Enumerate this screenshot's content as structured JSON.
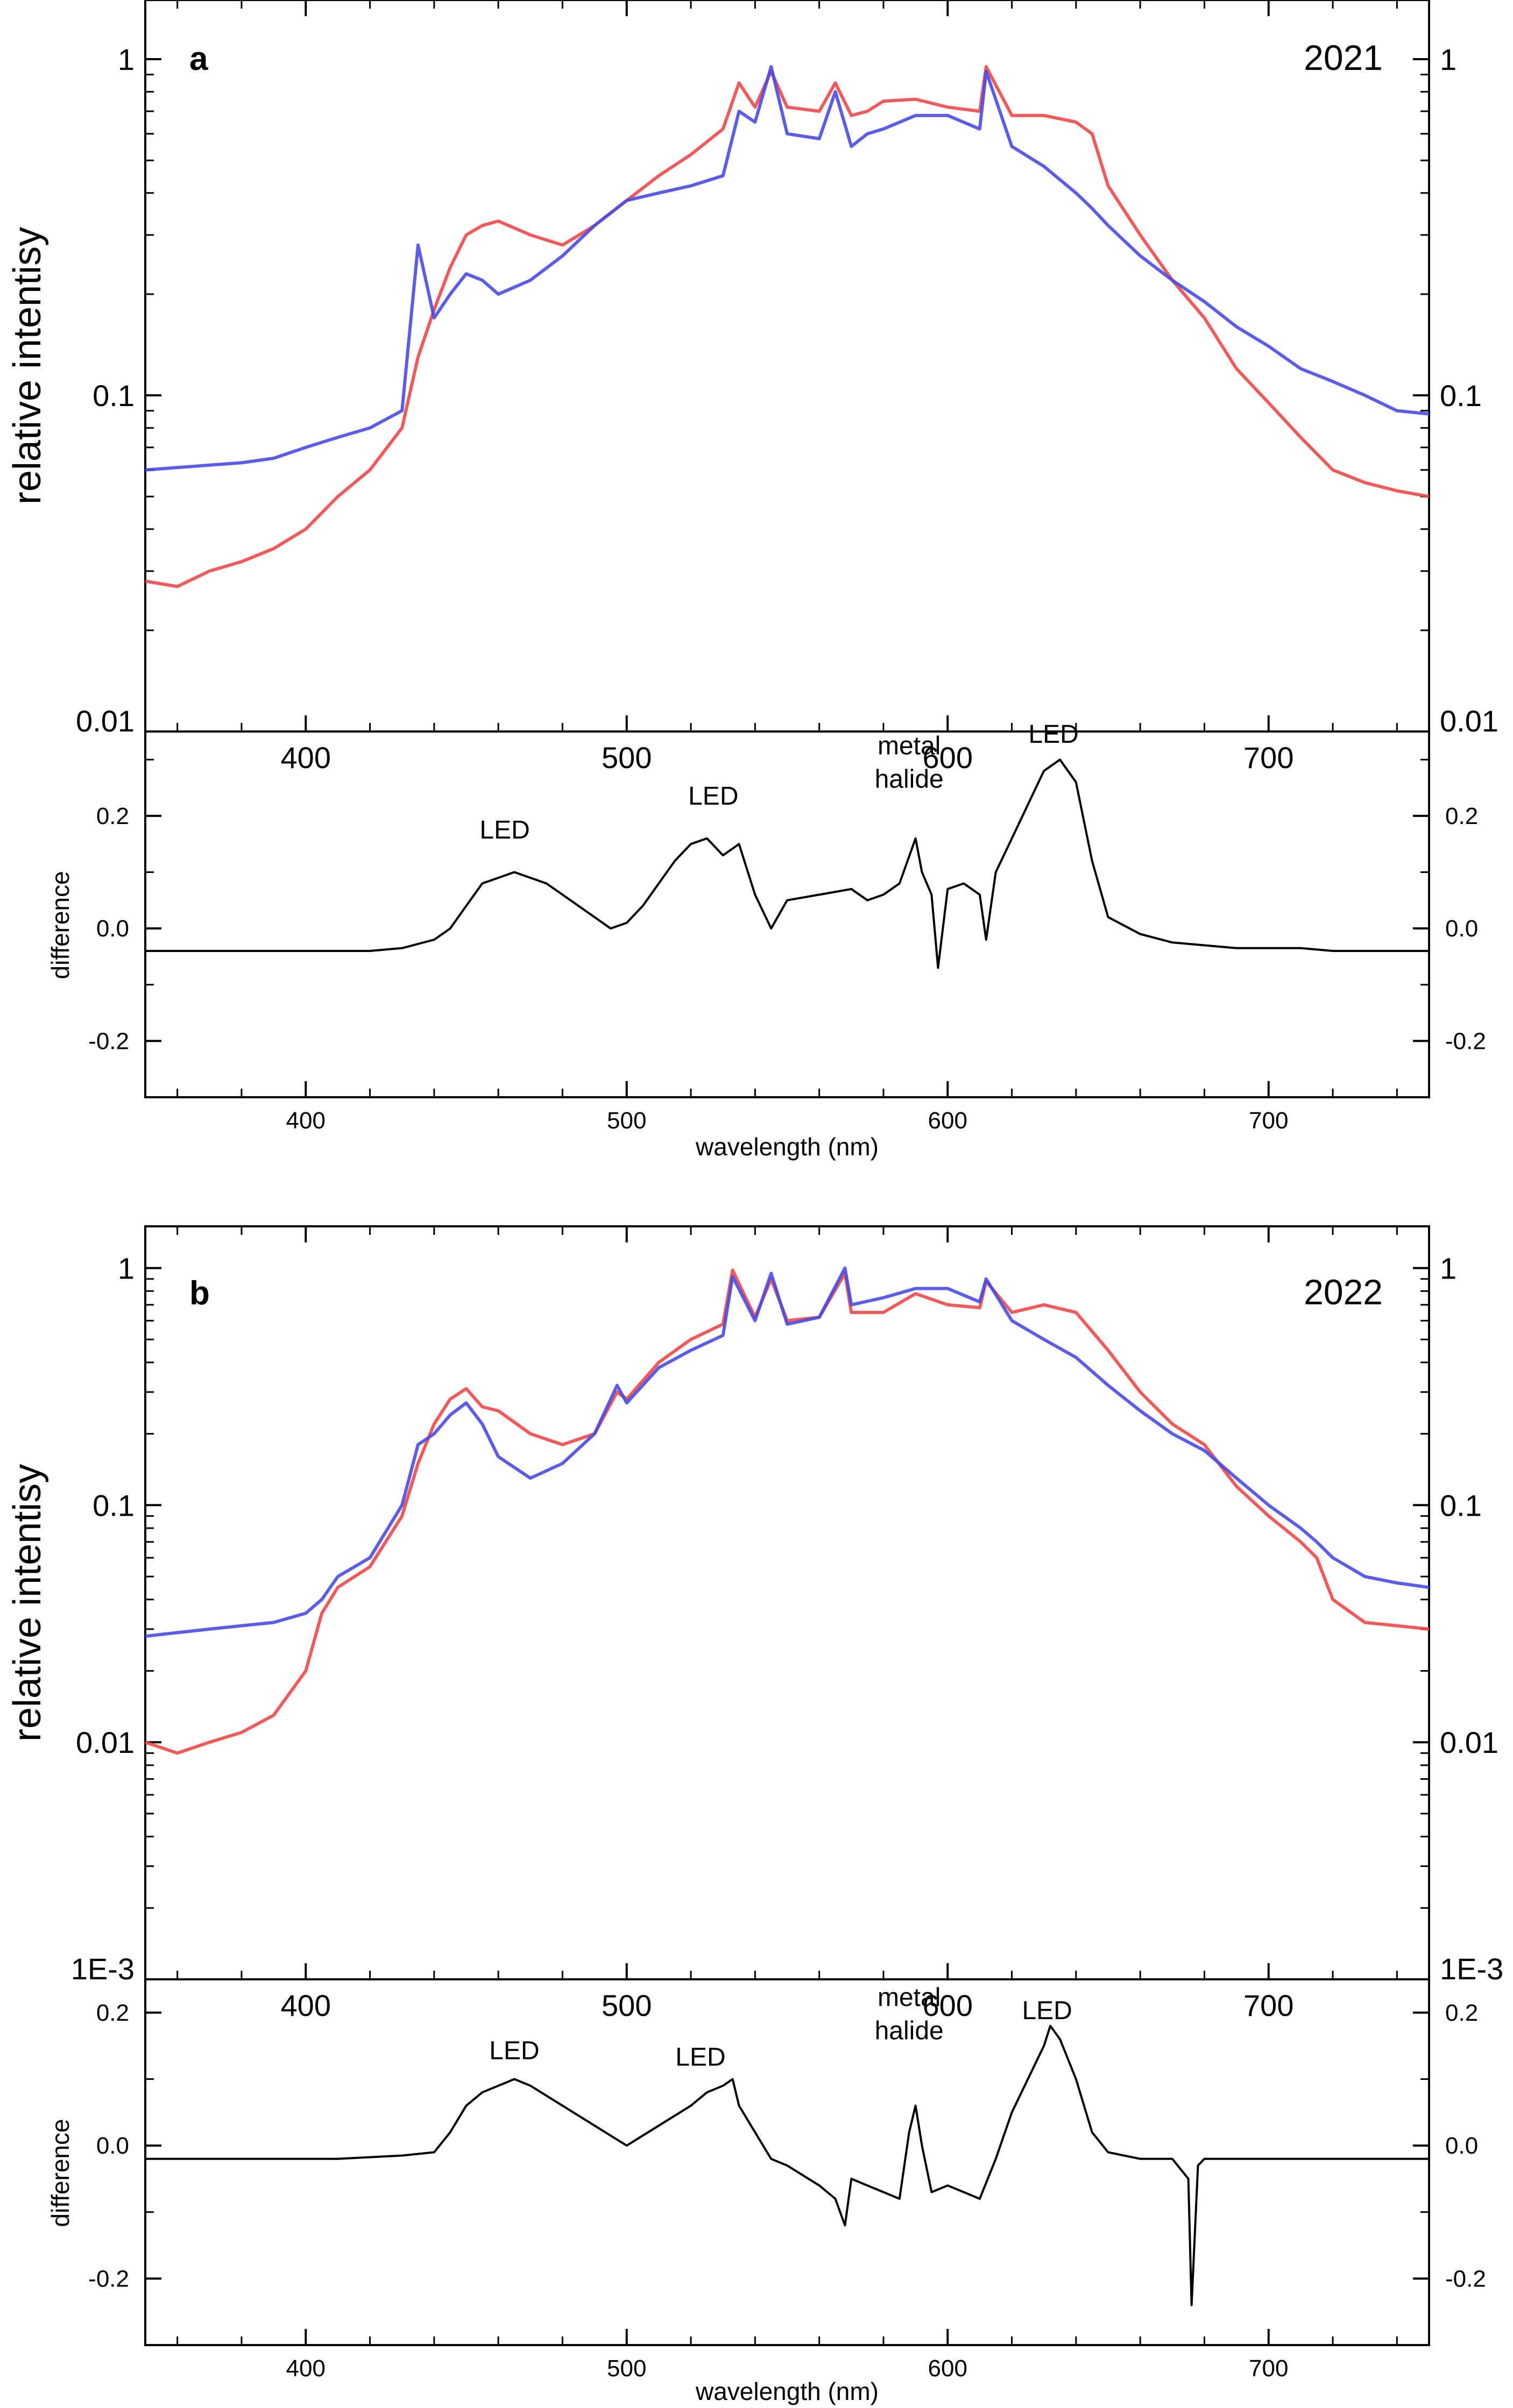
{
  "colors": {
    "red": "#f04848",
    "blue": "#4a4ae6",
    "diff": "#000000"
  },
  "panels": [
    {
      "letter": "a",
      "year": "2021",
      "main": {
        "ylabel": "relative intentisy",
        "scale": "log",
        "ylim": [
          0.01,
          1.5
        ],
        "yticks": [
          {
            "value": 0.01,
            "label": "0.01"
          },
          {
            "value": 0.1,
            "label": "0.1"
          },
          {
            "value": 1,
            "label": "1"
          }
        ],
        "xticks": [
          {
            "value": 400,
            "label": "400"
          },
          {
            "value": 500,
            "label": "500"
          },
          {
            "value": 600,
            "label": "600"
          },
          {
            "value": 700,
            "label": "700"
          }
        ]
      },
      "diff": {
        "ylabel": "difference",
        "xlabel": "",
        "ylim": [
          -0.3,
          0.35
        ],
        "yticks": [
          {
            "value": -0.2,
            "label": "-0.2"
          },
          {
            "value": 0.0,
            "label": "0.0"
          },
          {
            "value": 0.2,
            "label": "0.2"
          }
        ],
        "xticks": [
          {
            "value": 400,
            "label": "400"
          },
          {
            "value": 500,
            "label": "500"
          },
          {
            "value": 600,
            "label": "600"
          },
          {
            "value": 700,
            "label": "700"
          }
        ],
        "annotations": [
          {
            "text": "LED",
            "lines": [
              "LED"
            ],
            "x": 462,
            "y": 0.16
          },
          {
            "text": "LED",
            "lines": [
              "LED"
            ],
            "x": 527,
            "y": 0.22
          },
          {
            "text": "metal halide",
            "lines": [
              "metal",
              "halide"
            ],
            "x": 588,
            "y": 0.25
          },
          {
            "text": "LED",
            "lines": [
              "LED"
            ],
            "x": 633,
            "y": 0.33
          }
        ]
      }
    },
    {
      "letter": "b",
      "year": "2022",
      "main": {
        "ylabel": "relative intentisy",
        "scale": "log",
        "ylim": [
          0.001,
          1.5
        ],
        "yticks": [
          {
            "value": 0.001,
            "label": "1E-3"
          },
          {
            "value": 0.01,
            "label": "0.01"
          },
          {
            "value": 0.1,
            "label": "0.1"
          },
          {
            "value": 1,
            "label": "1"
          }
        ],
        "xticks": [
          {
            "value": 400,
            "label": "400"
          },
          {
            "value": 500,
            "label": "500"
          },
          {
            "value": 600,
            "label": "600"
          },
          {
            "value": 700,
            "label": "700"
          }
        ]
      },
      "diff": {
        "ylabel": "difference",
        "xlabel": "wavelength (nm)",
        "ylim": [
          -0.3,
          0.25
        ],
        "yticks": [
          {
            "value": -0.2,
            "label": "-0.2"
          },
          {
            "value": 0.0,
            "label": "0.0"
          },
          {
            "value": 0.2,
            "label": "0.2"
          }
        ],
        "xticks": [
          {
            "value": 400,
            "label": "400"
          },
          {
            "value": 500,
            "label": "500"
          },
          {
            "value": 600,
            "label": "600"
          },
          {
            "value": 700,
            "label": "700"
          }
        ],
        "annotations": [
          {
            "text": "LED",
            "lines": [
              "LED"
            ],
            "x": 465,
            "y": 0.13
          },
          {
            "text": "LED",
            "lines": [
              "LED"
            ],
            "x": 523,
            "y": 0.12
          },
          {
            "text": "metal halide",
            "lines": [
              "metal",
              "halide"
            ],
            "x": 588,
            "y": 0.16
          },
          {
            "text": "LED",
            "lines": [
              "LED"
            ],
            "x": 631,
            "y": 0.19
          }
        ]
      }
    }
  ],
  "panel_a_xlabel_middle": "wavelength (nm)",
  "chart_data": [
    {
      "type": "line",
      "title": "a 2021",
      "xlabel": "",
      "ylabel": "relative intentisy",
      "xlim": [
        350,
        750
      ],
      "ylim": [
        0.01,
        1.5
      ],
      "yscale": "log",
      "series": [
        {
          "color": "#f04848",
          "x": [
            350,
            360,
            370,
            380,
            390,
            400,
            410,
            420,
            430,
            435,
            440,
            445,
            450,
            455,
            460,
            470,
            480,
            490,
            500,
            510,
            520,
            530,
            535,
            540,
            545,
            550,
            560,
            565,
            570,
            575,
            580,
            590,
            600,
            610,
            612,
            620,
            630,
            640,
            645,
            650,
            660,
            670,
            680,
            690,
            700,
            710,
            720,
            730,
            740,
            750
          ],
          "y": [
            0.028,
            0.027,
            0.03,
            0.032,
            0.035,
            0.04,
            0.05,
            0.06,
            0.08,
            0.13,
            0.18,
            0.24,
            0.3,
            0.32,
            0.33,
            0.3,
            0.28,
            0.32,
            0.38,
            0.45,
            0.52,
            0.62,
            0.85,
            0.72,
            0.92,
            0.72,
            0.7,
            0.85,
            0.68,
            0.7,
            0.75,
            0.76,
            0.72,
            0.7,
            0.95,
            0.68,
            0.68,
            0.65,
            0.6,
            0.42,
            0.3,
            0.22,
            0.17,
            0.12,
            0.095,
            0.075,
            0.06,
            0.055,
            0.052,
            0.05
          ]
        },
        {
          "color": "#4a4ae6",
          "x": [
            350,
            360,
            370,
            380,
            390,
            400,
            410,
            420,
            430,
            435,
            440,
            445,
            450,
            455,
            460,
            470,
            480,
            490,
            500,
            510,
            520,
            530,
            535,
            540,
            545,
            550,
            560,
            565,
            570,
            575,
            580,
            590,
            600,
            610,
            612,
            620,
            630,
            640,
            645,
            650,
            660,
            670,
            680,
            690,
            700,
            710,
            720,
            730,
            740,
            750
          ],
          "y": [
            0.06,
            0.061,
            0.062,
            0.063,
            0.065,
            0.07,
            0.075,
            0.08,
            0.09,
            0.28,
            0.17,
            0.2,
            0.23,
            0.22,
            0.2,
            0.22,
            0.26,
            0.32,
            0.38,
            0.4,
            0.42,
            0.45,
            0.7,
            0.65,
            0.95,
            0.6,
            0.58,
            0.8,
            0.55,
            0.6,
            0.62,
            0.68,
            0.68,
            0.62,
            0.92,
            0.55,
            0.48,
            0.4,
            0.36,
            0.32,
            0.26,
            0.22,
            0.19,
            0.16,
            0.14,
            0.12,
            0.11,
            0.1,
            0.09,
            0.088
          ]
        }
      ]
    },
    {
      "type": "line",
      "title": "",
      "xlabel": "wavelength (nm)",
      "ylabel": "difference",
      "xlim": [
        350,
        750
      ],
      "ylim": [
        -0.3,
        0.35
      ],
      "series": [
        {
          "color": "#000000",
          "x": [
            350,
            370,
            390,
            410,
            420,
            430,
            440,
            445,
            450,
            455,
            460,
            465,
            470,
            475,
            480,
            490,
            495,
            500,
            505,
            510,
            515,
            520,
            525,
            530,
            535,
            540,
            545,
            550,
            560,
            570,
            575,
            580,
            585,
            590,
            592,
            595,
            597,
            600,
            605,
            610,
            612,
            615,
            620,
            625,
            630,
            635,
            640,
            645,
            650,
            660,
            670,
            680,
            690,
            700,
            710,
            720,
            730,
            740,
            750
          ],
          "y": [
            -0.04,
            -0.04,
            -0.04,
            -0.04,
            -0.04,
            -0.035,
            -0.02,
            0.0,
            0.04,
            0.08,
            0.09,
            0.1,
            0.09,
            0.08,
            0.06,
            0.02,
            0.0,
            0.01,
            0.04,
            0.08,
            0.12,
            0.15,
            0.16,
            0.13,
            0.15,
            0.06,
            0.0,
            0.05,
            0.06,
            0.07,
            0.05,
            0.06,
            0.08,
            0.16,
            0.1,
            0.06,
            -0.07,
            0.07,
            0.08,
            0.06,
            -0.02,
            0.1,
            0.16,
            0.22,
            0.28,
            0.3,
            0.26,
            0.12,
            0.02,
            -0.01,
            -0.025,
            -0.03,
            -0.035,
            -0.035,
            -0.035,
            -0.04,
            -0.04,
            -0.04,
            -0.04
          ]
        }
      ]
    },
    {
      "type": "line",
      "title": "b 2022",
      "xlabel": "",
      "ylabel": "relative intentisy",
      "xlim": [
        350,
        750
      ],
      "ylim": [
        0.001,
        1.5
      ],
      "yscale": "log",
      "series": [
        {
          "color": "#f04848",
          "x": [
            350,
            360,
            370,
            380,
            390,
            400,
            405,
            410,
            420,
            430,
            435,
            440,
            445,
            450,
            455,
            460,
            470,
            480,
            490,
            497,
            500,
            510,
            520,
            530,
            533,
            540,
            545,
            550,
            560,
            568,
            570,
            580,
            590,
            600,
            610,
            612,
            620,
            630,
            640,
            650,
            660,
            670,
            680,
            690,
            700,
            710,
            715,
            720,
            730,
            740,
            750
          ],
          "y": [
            0.01,
            0.009,
            0.01,
            0.011,
            0.013,
            0.02,
            0.035,
            0.045,
            0.055,
            0.09,
            0.15,
            0.22,
            0.28,
            0.31,
            0.26,
            0.25,
            0.2,
            0.18,
            0.2,
            0.3,
            0.28,
            0.4,
            0.5,
            0.58,
            0.98,
            0.62,
            0.9,
            0.6,
            0.62,
            0.95,
            0.65,
            0.65,
            0.78,
            0.7,
            0.68,
            0.88,
            0.65,
            0.7,
            0.65,
            0.45,
            0.3,
            0.22,
            0.18,
            0.12,
            0.09,
            0.07,
            0.06,
            0.04,
            0.032,
            0.031,
            0.03
          ]
        },
        {
          "color": "#4a4ae6",
          "x": [
            350,
            360,
            370,
            380,
            390,
            400,
            405,
            410,
            420,
            430,
            435,
            440,
            445,
            450,
            455,
            460,
            470,
            480,
            490,
            497,
            500,
            510,
            520,
            530,
            533,
            540,
            545,
            550,
            560,
            568,
            570,
            580,
            590,
            600,
            610,
            612,
            620,
            630,
            640,
            650,
            660,
            670,
            680,
            690,
            700,
            710,
            715,
            720,
            730,
            740,
            750
          ],
          "y": [
            0.028,
            0.029,
            0.03,
            0.031,
            0.032,
            0.035,
            0.04,
            0.05,
            0.06,
            0.1,
            0.18,
            0.2,
            0.24,
            0.27,
            0.22,
            0.16,
            0.13,
            0.15,
            0.2,
            0.32,
            0.27,
            0.38,
            0.45,
            0.52,
            0.92,
            0.6,
            0.95,
            0.58,
            0.62,
            1.0,
            0.7,
            0.75,
            0.82,
            0.82,
            0.72,
            0.9,
            0.6,
            0.5,
            0.42,
            0.32,
            0.25,
            0.2,
            0.17,
            0.13,
            0.1,
            0.08,
            0.07,
            0.06,
            0.05,
            0.047,
            0.045
          ]
        }
      ]
    },
    {
      "type": "line",
      "title": "",
      "xlabel": "wavelength (nm)",
      "ylabel": "difference",
      "xlim": [
        350,
        750
      ],
      "ylim": [
        -0.3,
        0.25
      ],
      "series": [
        {
          "color": "#000000",
          "x": [
            350,
            370,
            390,
            410,
            430,
            440,
            445,
            450,
            455,
            460,
            465,
            470,
            480,
            490,
            500,
            510,
            520,
            525,
            530,
            533,
            535,
            540,
            545,
            550,
            560,
            565,
            568,
            570,
            575,
            580,
            585,
            588,
            590,
            592,
            595,
            600,
            605,
            610,
            615,
            620,
            625,
            630,
            632,
            635,
            640,
            645,
            650,
            660,
            670,
            675,
            676,
            678,
            680,
            690,
            700,
            710,
            720,
            730,
            740,
            750
          ],
          "y": [
            -0.02,
            -0.02,
            -0.02,
            -0.02,
            -0.015,
            -0.01,
            0.02,
            0.06,
            0.08,
            0.09,
            0.1,
            0.09,
            0.06,
            0.03,
            0.0,
            0.03,
            0.06,
            0.08,
            0.09,
            0.1,
            0.06,
            0.02,
            -0.02,
            -0.03,
            -0.06,
            -0.08,
            -0.12,
            -0.05,
            -0.06,
            -0.07,
            -0.08,
            0.02,
            0.06,
            0.0,
            -0.07,
            -0.06,
            -0.07,
            -0.08,
            -0.02,
            0.05,
            0.1,
            0.15,
            0.18,
            0.16,
            0.1,
            0.02,
            -0.01,
            -0.02,
            -0.02,
            -0.05,
            -0.24,
            -0.03,
            -0.02,
            -0.02,
            -0.02,
            -0.02,
            -0.02,
            -0.02,
            -0.02,
            -0.02
          ]
        }
      ]
    }
  ]
}
